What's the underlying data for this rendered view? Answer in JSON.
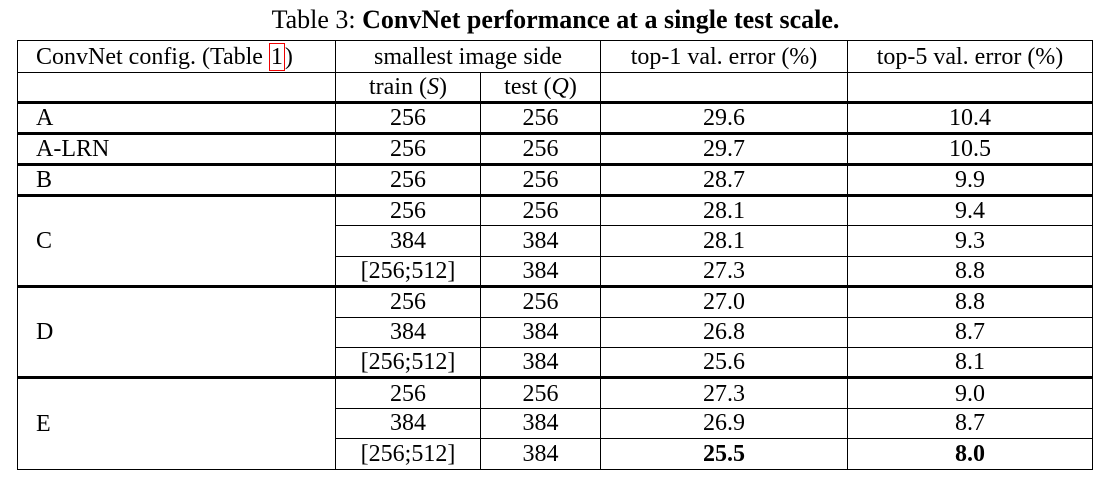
{
  "caption": {
    "label": "Table 3:",
    "title": "ConvNet performance at a single test scale."
  },
  "header": {
    "config": [
      "ConvNet config. (Table ",
      "1",
      ")"
    ],
    "side": "smallest image side",
    "train": [
      "train (",
      "S",
      ")"
    ],
    "test": [
      "test (",
      "Q",
      ")"
    ],
    "top1": "top-1 val. error (%)",
    "top5": "top-5 val. error (%)"
  },
  "groups": [
    {
      "config": "A",
      "rows": [
        {
          "train": "256",
          "test": "256",
          "top1": "29.6",
          "top5": "10.4"
        }
      ]
    },
    {
      "config": "A-LRN",
      "rows": [
        {
          "train": "256",
          "test": "256",
          "top1": "29.7",
          "top5": "10.5"
        }
      ]
    },
    {
      "config": "B",
      "rows": [
        {
          "train": "256",
          "test": "256",
          "top1": "28.7",
          "top5": "9.9"
        }
      ]
    },
    {
      "config": "C",
      "rows": [
        {
          "train": "256",
          "test": "256",
          "top1": "28.1",
          "top5": "9.4"
        },
        {
          "train": "384",
          "test": "384",
          "top1": "28.1",
          "top5": "9.3"
        },
        {
          "train": "[256;512]",
          "test": "384",
          "top1": "27.3",
          "top5": "8.8"
        }
      ]
    },
    {
      "config": "D",
      "rows": [
        {
          "train": "256",
          "test": "256",
          "top1": "27.0",
          "top5": "8.8"
        },
        {
          "train": "384",
          "test": "384",
          "top1": "26.8",
          "top5": "8.7"
        },
        {
          "train": "[256;512]",
          "test": "384",
          "top1": "25.6",
          "top5": "8.1"
        }
      ]
    },
    {
      "config": "E",
      "rows": [
        {
          "train": "256",
          "test": "256",
          "top1": "27.3",
          "top5": "9.0"
        },
        {
          "train": "384",
          "test": "384",
          "top1": "26.9",
          "top5": "8.7"
        },
        {
          "train": "[256;512]",
          "test": "384",
          "top1": "25.5",
          "top5": "8.0",
          "bold": true
        }
      ]
    }
  ]
}
